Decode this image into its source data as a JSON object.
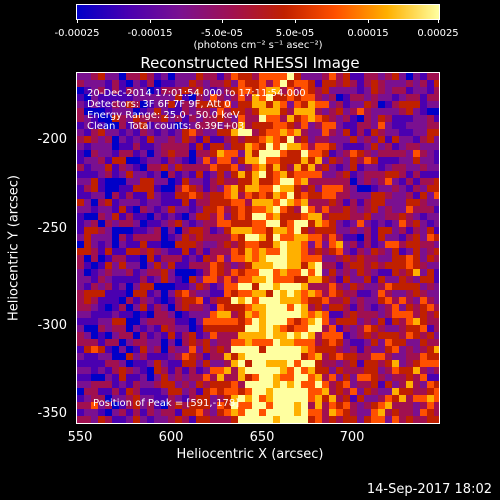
{
  "colorbar": {
    "ticks": [
      "-0.00025",
      "-0.00015",
      "-5.0e-05",
      "5.0e-05",
      "0.00015",
      "0.00025"
    ],
    "unit": "(photons cm⁻² s⁻¹ asec⁻²)",
    "stops": [
      "#0000c8",
      "#4a00b0",
      "#7a1090",
      "#a01050",
      "#c02000",
      "#ff5000",
      "#ffb000",
      "#ffffa0"
    ]
  },
  "title": "Reconstructed RHESSI Image",
  "overlay": {
    "line1": "20-Dec-2014 17:01:54.000 to 17:11:54.000",
    "line2": "Detectors: 3F 6F 7F 9F, Att 0",
    "line3": "Energy Range: 25.0 - 50.0 keV",
    "line4": "Clean    Total counts: 6.39E+03",
    "peak": "Position of Peak = [591,-178]"
  },
  "axes": {
    "x_label": "Heliocentric X (arcsec)",
    "y_label": "Heliocentric Y (arcsec)",
    "x_ticks": [
      "550",
      "600",
      "650",
      "700"
    ],
    "y_ticks": [
      "-200",
      "-250",
      "-300",
      "-350"
    ],
    "x_range": [
      549,
      736
    ],
    "y_range": [
      -357,
      -177
    ]
  },
  "footer": {
    "timestamp": "14-Sep-2017 18:02"
  }
}
